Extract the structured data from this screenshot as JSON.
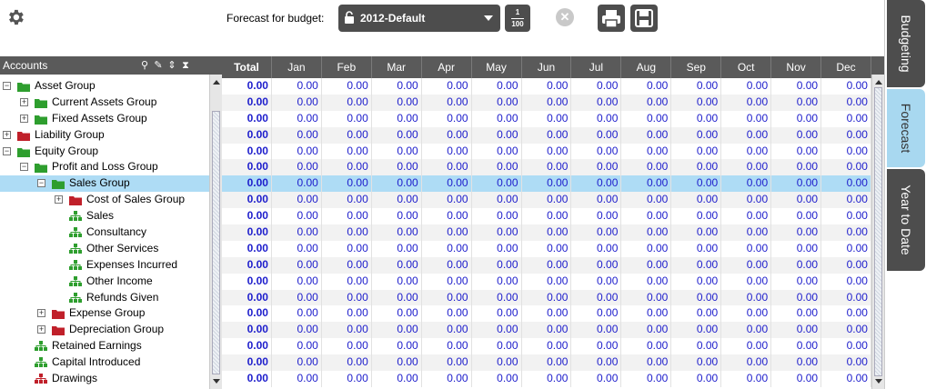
{
  "toolbar": {
    "settings_icon": "gear-icon",
    "forecast_label": "Forecast for budget:",
    "budget_value": "2012-Default",
    "fraction_top": "1",
    "fraction_bottom": "100",
    "clear_icon": "close-circle-icon",
    "clear_glyph": "✕",
    "print_icon": "printer-icon",
    "save_icon": "floppy-icon"
  },
  "accounts": {
    "header": "Accounts",
    "tools": [
      "search-icon",
      "pencil-icon",
      "sort-icon",
      "hourglass-icon"
    ],
    "tools_glyphs": [
      "⚲",
      "✎",
      "⇕",
      "⧗"
    ],
    "rows": [
      {
        "label": "Asset Group",
        "level": 0,
        "expander": "⊟",
        "icon": "folder-green"
      },
      {
        "label": "Current Assets Group",
        "level": 1,
        "expander": "⊞",
        "icon": "folder-green"
      },
      {
        "label": "Fixed Assets Group",
        "level": 1,
        "expander": "⊞",
        "icon": "folder-green"
      },
      {
        "label": "Liability Group",
        "level": 0,
        "expander": "⊞",
        "icon": "folder-red"
      },
      {
        "label": "Equity Group",
        "level": 0,
        "expander": "⊟",
        "icon": "folder-green"
      },
      {
        "label": "Profit and Loss Group",
        "level": 1,
        "expander": "⊟",
        "icon": "folder-green"
      },
      {
        "label": "Sales Group",
        "level": 2,
        "expander": "⊟",
        "icon": "folder-green",
        "selected": true
      },
      {
        "label": "Cost of Sales Group",
        "level": 3,
        "expander": "⊞",
        "icon": "folder-red"
      },
      {
        "label": "Sales",
        "level": 3,
        "expander": "",
        "icon": "account-green"
      },
      {
        "label": "Consultancy",
        "level": 3,
        "expander": "",
        "icon": "account-green"
      },
      {
        "label": "Other Services",
        "level": 3,
        "expander": "",
        "icon": "account-green"
      },
      {
        "label": "Expenses Incurred",
        "level": 3,
        "expander": "",
        "icon": "account-green"
      },
      {
        "label": "Other Income",
        "level": 3,
        "expander": "",
        "icon": "account-green"
      },
      {
        "label": "Refunds Given",
        "level": 3,
        "expander": "",
        "icon": "account-green"
      },
      {
        "label": "Expense Group",
        "level": 2,
        "expander": "⊞",
        "icon": "folder-red"
      },
      {
        "label": "Depreciation Group",
        "level": 2,
        "expander": "⊞",
        "icon": "folder-red"
      },
      {
        "label": "Retained Earnings",
        "level": 1,
        "expander": "",
        "icon": "account-green"
      },
      {
        "label": "Capital Introduced",
        "level": 1,
        "expander": "",
        "icon": "account-green"
      },
      {
        "label": "Drawings",
        "level": 1,
        "expander": "",
        "icon": "account-red"
      }
    ]
  },
  "grid": {
    "columns": [
      "Total",
      "Jan",
      "Feb",
      "Mar",
      "Apr",
      "May",
      "Jun",
      "Jul",
      "Aug",
      "Sep",
      "Oct",
      "Nov",
      "Dec"
    ],
    "row_count": 19,
    "selected_row": 6,
    "value": "0.00"
  },
  "tabs": [
    "Budgeting",
    "Forecast",
    "Year to Date"
  ],
  "active_tab": "Forecast",
  "colors": {
    "header_bg": "#5a5a5a",
    "selection": "#aedcf5",
    "value_text": "#1d1dcc",
    "folder_green": "#2e9e2e",
    "folder_red": "#c0202a"
  }
}
